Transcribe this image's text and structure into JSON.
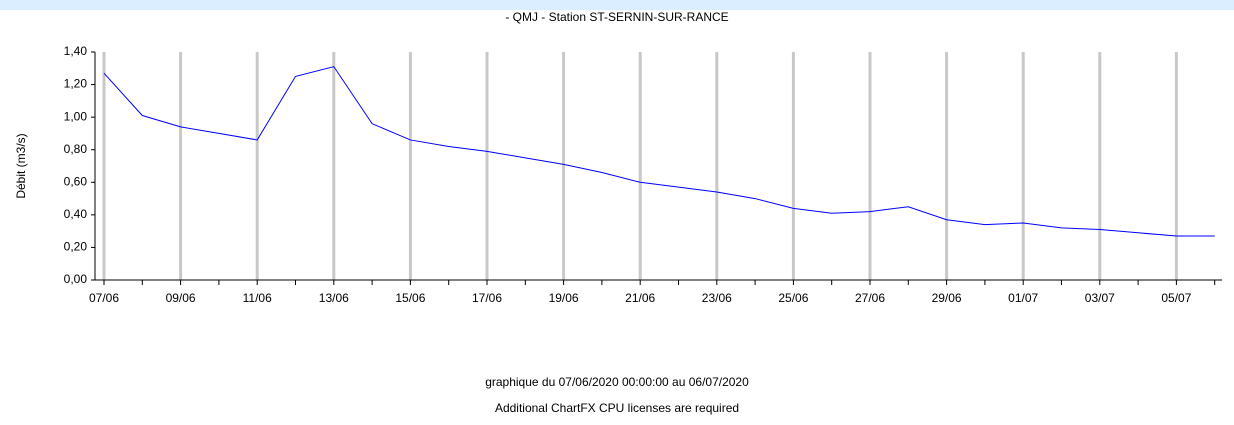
{
  "chart_data": {
    "type": "line",
    "title": "- QMJ - Station ST-SERNIN-SUR-RANCE",
    "y_label": "Débit (m3/s)",
    "footer": [
      "graphique du 07/06/2020 00:00:00 au 06/07/2020",
      "Additional ChartFX CPU licenses are required"
    ],
    "categories": [
      "07/06",
      null,
      "09/06",
      null,
      "11/06",
      null,
      "13/06",
      null,
      "15/06",
      null,
      "17/06",
      null,
      "19/06",
      null,
      "21/06",
      null,
      "23/06",
      null,
      "25/06",
      null,
      "27/06",
      null,
      "29/06",
      null,
      "01/07",
      null,
      "03/07",
      null,
      "05/07",
      null
    ],
    "series": [
      {
        "color": "#0000ff",
        "values": [
          1.27,
          1.01,
          0.94,
          0.9,
          0.86,
          1.25,
          1.31,
          0.96,
          0.86,
          0.82,
          0.79,
          0.75,
          0.71,
          0.66,
          0.6,
          0.57,
          0.54,
          0.5,
          0.44,
          0.41,
          0.42,
          0.45,
          0.37,
          0.34,
          0.35,
          0.32,
          0.31,
          0.29,
          0.27,
          0.27
        ]
      }
    ],
    "ylim": [
      0,
      1.4
    ],
    "yticks": [
      {
        "value": 0,
        "label": "0,00"
      },
      {
        "value": 0.2,
        "label": "0,20"
      },
      {
        "value": 0.4,
        "label": "0,40"
      },
      {
        "value": 0.6,
        "label": "0,60"
      },
      {
        "value": 0.8,
        "label": "0,80"
      },
      {
        "value": 1.0,
        "label": "1,00"
      },
      {
        "value": 1.2,
        "label": "1,20"
      },
      {
        "value": 1.4,
        "label": "1,40"
      }
    ],
    "grid": true
  }
}
